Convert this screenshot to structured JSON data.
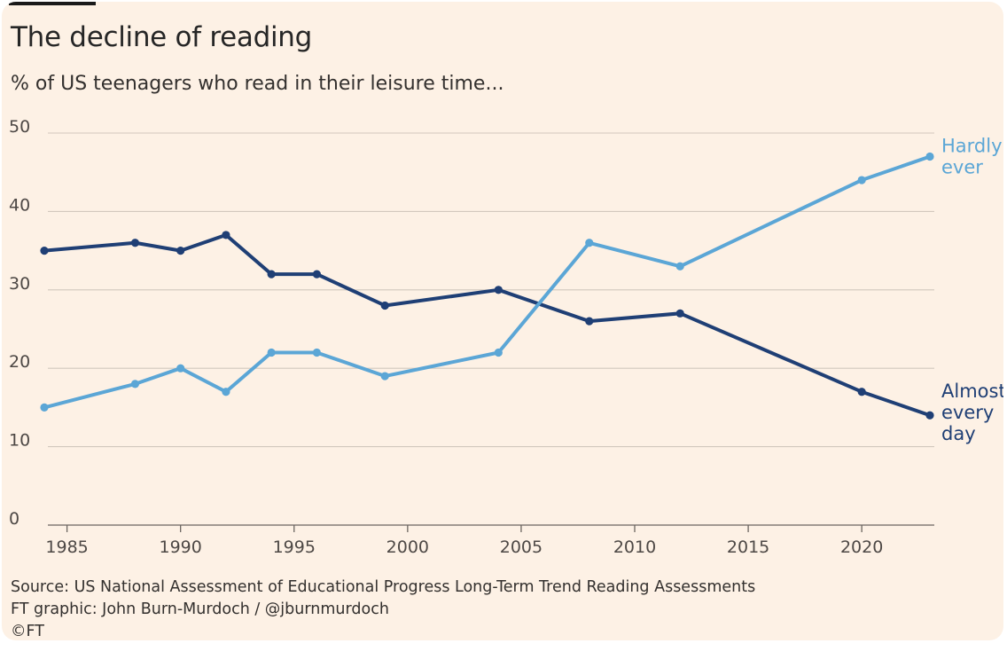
{
  "title": "The decline of reading",
  "subtitle": "% of US teenagers who read in their leisure time...",
  "source": "Source: US National Assessment of Educational Progress Long-Term Trend Reading Assessments",
  "credit": "FT graphic: John Burn-Murdoch / @jburnmurdoch",
  "copyright": "©FT",
  "colors": {
    "background": "#fdf1e5",
    "almost_every_day": "#1f3f75",
    "hardly_ever": "#5ba6d6",
    "grid": "#d2c8bd",
    "axis": "#6b6560"
  },
  "chart_data": {
    "type": "line",
    "title": "The decline of reading",
    "subtitle": "% of US teenagers who read in their leisure time...",
    "xlabel": "",
    "ylabel": "",
    "xlim": [
      1984,
      2023
    ],
    "ylim": [
      0,
      50
    ],
    "xticks": [
      1985,
      1990,
      1995,
      2000,
      2005,
      2010,
      2015,
      2020
    ],
    "yticks": [
      0,
      10,
      20,
      30,
      40,
      50
    ],
    "grid": true,
    "series": [
      {
        "name": "Almost every day",
        "label_lines": [
          "Almost",
          "every",
          "day"
        ],
        "color": "#1f3f75",
        "x": [
          1984,
          1988,
          1990,
          1992,
          1994,
          1996,
          1999,
          2004,
          2008,
          2012,
          2020,
          2023
        ],
        "values": [
          35,
          36,
          35,
          37,
          32,
          32,
          28,
          30,
          26,
          27,
          17,
          14
        ]
      },
      {
        "name": "Hardly ever",
        "label_lines": [
          "Hardly",
          "ever"
        ],
        "color": "#5ba6d6",
        "x": [
          1984,
          1988,
          1990,
          1992,
          1994,
          1996,
          1999,
          2004,
          2008,
          2012,
          2020,
          2023
        ],
        "values": [
          15,
          18,
          20,
          17,
          22,
          22,
          19,
          22,
          36,
          33,
          44,
          47
        ]
      }
    ]
  }
}
